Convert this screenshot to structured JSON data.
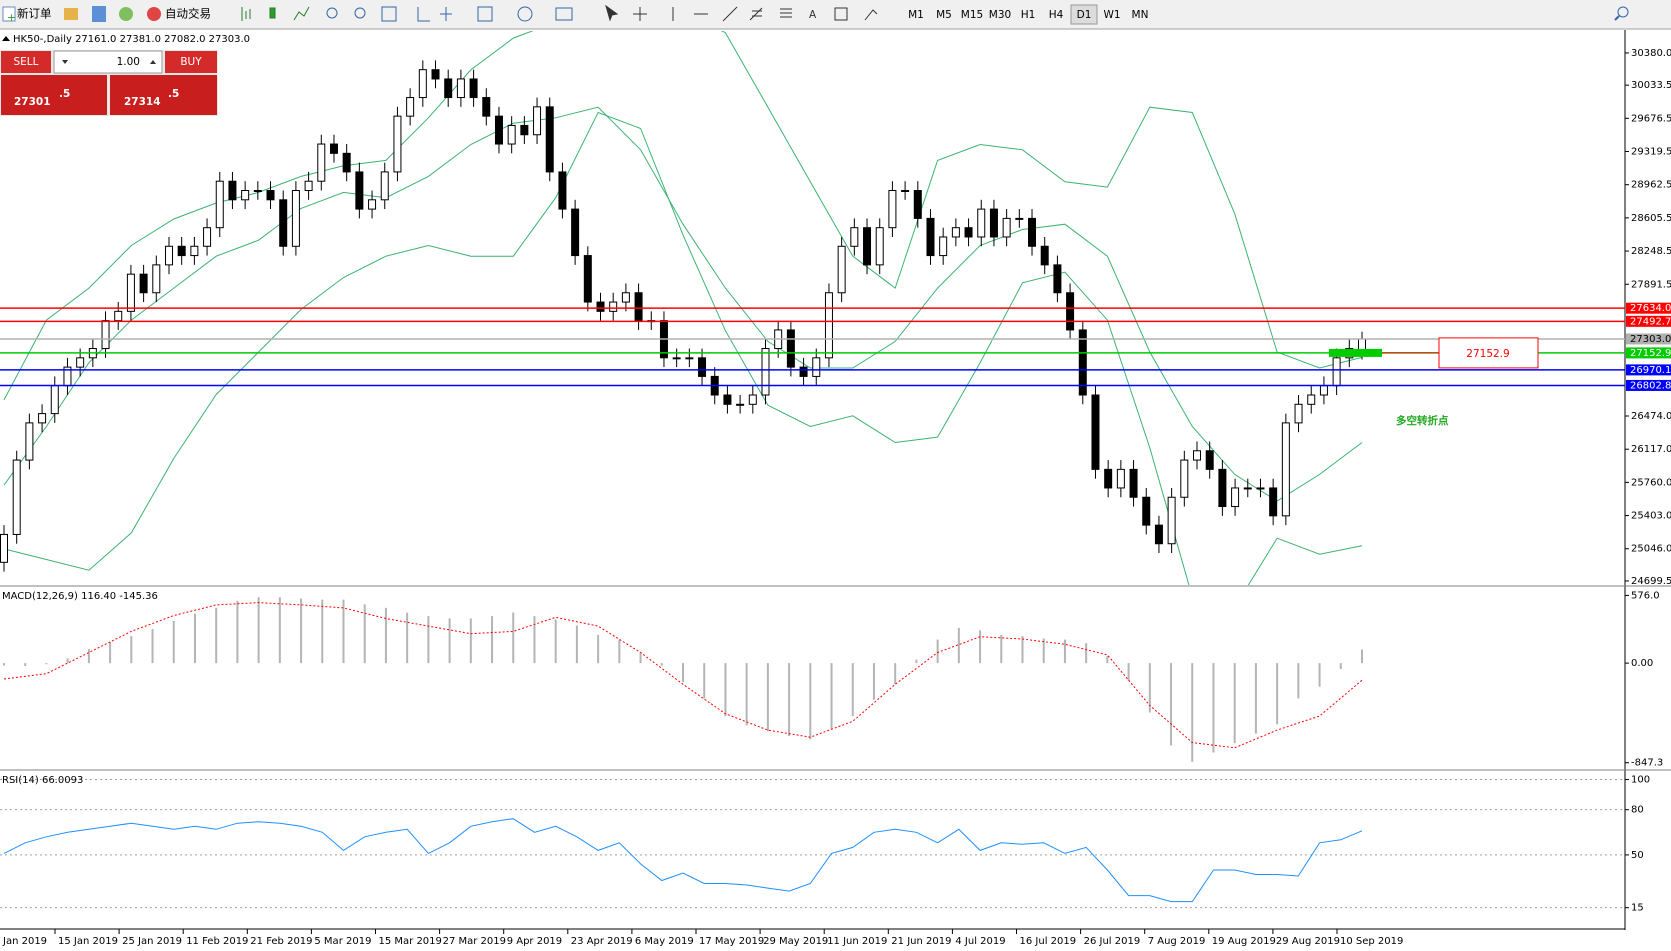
{
  "toolbar": {
    "new_order": "新订单",
    "auto_trading": "自动交易",
    "timeframes": [
      "M1",
      "M5",
      "M15",
      "M30",
      "H1",
      "H4",
      "D1",
      "W1",
      "MN"
    ]
  },
  "trade_panel": {
    "sell": "SELL",
    "lot": "1.00",
    "buy": "BUY",
    "bid_main": "27301",
    "bid_frac": ".5",
    "ask_main": "27314",
    "ask_frac": ".5"
  },
  "chart_data": [
    {
      "type": "candlestick",
      "title": "HK50-,Daily 27161.0 27381.0 27082.0 27303.0",
      "up_color": "#ffffff",
      "down_color": "#000000",
      "ohlc": [
        [
          24900,
          25300,
          24800,
          25200
        ],
        [
          25200,
          26100,
          25100,
          26000
        ],
        [
          26000,
          26500,
          25900,
          26400
        ],
        [
          26400,
          26600,
          26300,
          26500
        ],
        [
          26500,
          26900,
          26400,
          26800
        ],
        [
          26800,
          27100,
          26700,
          27000
        ],
        [
          27000,
          27200,
          26900,
          27100
        ],
        [
          27100,
          27300,
          27000,
          27200
        ],
        [
          27200,
          27600,
          27100,
          27500
        ],
        [
          27500,
          27700,
          27400,
          27600
        ],
        [
          27600,
          28100,
          27500,
          28000
        ],
        [
          28000,
          28100,
          27700,
          27800
        ],
        [
          27800,
          28200,
          27700,
          28100
        ],
        [
          28100,
          28400,
          28000,
          28300
        ],
        [
          28300,
          28400,
          28100,
          28200
        ],
        [
          28200,
          28400,
          28100,
          28300
        ],
        [
          28300,
          28600,
          28200,
          28500
        ],
        [
          28500,
          29100,
          28400,
          29000
        ],
        [
          29000,
          29100,
          28700,
          28800
        ],
        [
          28800,
          29000,
          28700,
          28900
        ],
        [
          28900,
          29000,
          28800,
          28900
        ],
        [
          28900,
          29000,
          28700,
          28800
        ],
        [
          28800,
          28900,
          28200,
          28300
        ],
        [
          28300,
          29000,
          28200,
          28900
        ],
        [
          28900,
          29100,
          28800,
          29000
        ],
        [
          29000,
          29500,
          28900,
          29400
        ],
        [
          29400,
          29500,
          29200,
          29300
        ],
        [
          29300,
          29400,
          29000,
          29100
        ],
        [
          29100,
          29200,
          28600,
          28700
        ],
        [
          28700,
          28900,
          28600,
          28800
        ],
        [
          28800,
          29200,
          28700,
          29100
        ],
        [
          29100,
          29800,
          29000,
          29700
        ],
        [
          29700,
          30000,
          29600,
          29900
        ],
        [
          29900,
          30300,
          29800,
          30200
        ],
        [
          30200,
          30300,
          30000,
          30100
        ],
        [
          30100,
          30200,
          29800,
          29900
        ],
        [
          29900,
          30200,
          29800,
          30100
        ],
        [
          30100,
          30200,
          29800,
          29900
        ],
        [
          29900,
          30000,
          29600,
          29700
        ],
        [
          29700,
          29800,
          29300,
          29400
        ],
        [
          29400,
          29700,
          29300,
          29600
        ],
        [
          29600,
          29700,
          29400,
          29500
        ],
        [
          29500,
          29900,
          29400,
          29800
        ],
        [
          29800,
          29900,
          29000,
          29100
        ],
        [
          29100,
          29200,
          28600,
          28700
        ],
        [
          28700,
          28800,
          28100,
          28200
        ],
        [
          28200,
          28300,
          27600,
          27700
        ],
        [
          27700,
          27800,
          27500,
          27600
        ],
        [
          27600,
          27800,
          27500,
          27700
        ],
        [
          27700,
          27900,
          27600,
          27800
        ],
        [
          27800,
          27900,
          27400,
          27500
        ],
        [
          27500,
          27600,
          27400,
          27500
        ],
        [
          27500,
          27600,
          27000,
          27100
        ],
        [
          27100,
          27200,
          27000,
          27100
        ],
        [
          27100,
          27200,
          27000,
          27100
        ],
        [
          27100,
          27200,
          26800,
          26900
        ],
        [
          26900,
          27000,
          26600,
          26700
        ],
        [
          26700,
          26800,
          26500,
          26600
        ],
        [
          26600,
          26700,
          26500,
          26600
        ],
        [
          26600,
          26800,
          26500,
          26700
        ],
        [
          26700,
          27300,
          26600,
          27200
        ],
        [
          27200,
          27500,
          27100,
          27400
        ],
        [
          27400,
          27500,
          26900,
          27000
        ],
        [
          27000,
          27100,
          26800,
          26900
        ],
        [
          26900,
          27200,
          26800,
          27100
        ],
        [
          27100,
          27900,
          27000,
          27800
        ],
        [
          27800,
          28400,
          27700,
          28300
        ],
        [
          28300,
          28600,
          28200,
          28500
        ],
        [
          28500,
          28600,
          28000,
          28100
        ],
        [
          28100,
          28600,
          28000,
          28500
        ],
        [
          28500,
          29000,
          28400,
          28900
        ],
        [
          28900,
          29000,
          28800,
          28900
        ],
        [
          28900,
          29000,
          28500,
          28600
        ],
        [
          28600,
          28700,
          28100,
          28200
        ],
        [
          28200,
          28500,
          28100,
          28400
        ],
        [
          28400,
          28600,
          28300,
          28500
        ],
        [
          28500,
          28600,
          28300,
          28400
        ],
        [
          28400,
          28800,
          28300,
          28700
        ],
        [
          28700,
          28800,
          28300,
          28400
        ],
        [
          28400,
          28700,
          28300,
          28600
        ],
        [
          28600,
          28700,
          28500,
          28600
        ],
        [
          28600,
          28700,
          28200,
          28300
        ],
        [
          28300,
          28400,
          28000,
          28100
        ],
        [
          28100,
          28200,
          27700,
          27800
        ],
        [
          27800,
          27900,
          27300,
          27400
        ],
        [
          27400,
          27500,
          26600,
          26700
        ],
        [
          26700,
          26800,
          25800,
          25900
        ],
        [
          25900,
          26000,
          25600,
          25700
        ],
        [
          25700,
          26000,
          25600,
          25900
        ],
        [
          25900,
          26000,
          25500,
          25600
        ],
        [
          25600,
          25700,
          25200,
          25300
        ],
        [
          25300,
          25400,
          25000,
          25100
        ],
        [
          25100,
          25700,
          25000,
          25600
        ],
        [
          25600,
          26100,
          25500,
          26000
        ],
        [
          26000,
          26200,
          25900,
          26100
        ],
        [
          26100,
          26200,
          25800,
          25900
        ],
        [
          25900,
          26000,
          25400,
          25500
        ],
        [
          25500,
          25800,
          25400,
          25700
        ],
        [
          25700,
          25800,
          25600,
          25700
        ],
        [
          25700,
          25800,
          25600,
          25700
        ],
        [
          25700,
          25800,
          25300,
          25400
        ],
        [
          25400,
          26500,
          25300,
          26400
        ],
        [
          26400,
          26700,
          26300,
          26600
        ],
        [
          26600,
          26800,
          26500,
          26700
        ],
        [
          26700,
          26900,
          26600,
          26800
        ],
        [
          26800,
          27200,
          26700,
          27100
        ],
        [
          27100,
          27300,
          27000,
          27200
        ],
        [
          27161,
          27381,
          27082,
          27303
        ]
      ],
      "bollinger": {
        "color": "#3cb371",
        "upper": [
          26647,
          27506,
          27850,
          28308,
          28594,
          28766,
          28880,
          29052,
          29166,
          29224,
          29682,
          30197,
          30540,
          30712,
          30769,
          30826,
          30826,
          30598,
          29796,
          28994,
          28193,
          27850,
          29224,
          29395,
          29338,
          28994,
          28937,
          29796,
          29739,
          28651,
          27163,
          26991,
          27105
        ],
        "middle": [
          25731,
          26361,
          27048,
          27506,
          27850,
          28193,
          28365,
          28708,
          28880,
          28823,
          29052,
          29395,
          29624,
          29682,
          29796,
          29338,
          28537,
          27850,
          27277,
          26991,
          26991,
          27277,
          27850,
          28308,
          28480,
          28537,
          28193,
          27163,
          26361,
          25846,
          25560,
          25846,
          26189
        ],
        "lower": [
          25044,
          24930,
          24815,
          25216,
          26018,
          26705,
          27163,
          27621,
          27964,
          28193,
          28308,
          28193,
          28193,
          28823,
          29739,
          29567,
          28422,
          27392,
          26590,
          26361,
          26476,
          26189,
          26247,
          27048,
          27907,
          28021,
          27506,
          26132,
          24529,
          24415,
          25159,
          24987,
          25079
        ]
      },
      "levels": [
        {
          "value": 27634.0,
          "label": "27634.0",
          "color": "#ff0000",
          "label_color": "#ffffff"
        },
        {
          "value": 27492.7,
          "label": "27492.7",
          "color": "#ff0000",
          "label_color": "#ffffff"
        },
        {
          "value": 27303.0,
          "label": "27303.0",
          "color": "#b0b0b0",
          "label_color": "#000000"
        },
        {
          "value": 27152.9,
          "label": "27152.9",
          "color": "#00cc00",
          "label_color": "#ffffff"
        },
        {
          "value": 26970.1,
          "label": "26970.1",
          "color": "#0000ff",
          "label_color": "#ffffff"
        },
        {
          "value": 26802.8,
          "label": "26802.8",
          "color": "#0000ff",
          "label_color": "#ffffff"
        }
      ],
      "annotation": {
        "text": "多空转折点",
        "color": "#22aa22"
      },
      "ylim": [
        24656,
        30616
      ],
      "yticks": [
        {
          "value": 30380,
          "label": "30380.0"
        },
        {
          "value": 30033.5,
          "label": "30033.5"
        },
        {
          "value": 29676.5,
          "label": "29676.5"
        },
        {
          "value": 29319.5,
          "label": "29319.5"
        },
        {
          "value": 28962.5,
          "label": "28962.5"
        },
        {
          "value": 28605.5,
          "label": "28605.5"
        },
        {
          "value": 28248.5,
          "label": "28248.5"
        },
        {
          "value": 27891.5,
          "label": "27891.5"
        },
        {
          "value": 26474,
          "label": "26474.0"
        },
        {
          "value": 26117,
          "label": "26117.0"
        },
        {
          "value": 25760,
          "label": "25760.0"
        },
        {
          "value": 25403,
          "label": "25403.0"
        },
        {
          "value": 25046,
          "label": "25046.0"
        },
        {
          "value": 24699.5,
          "label": "24699.5"
        }
      ],
      "date_labels": [
        "Jan 2019",
        "15 Jan 2019",
        "25 Jan 2019",
        "11 Feb 2019",
        "21 Feb 2019",
        "5 Mar 2019",
        "15 Mar 2019",
        "27 Mar 2019",
        "9 Apr 2019",
        "23 Apr 2019",
        "6 May 2019",
        "17 May 2019",
        "29 May 2019",
        "11 Jun 2019",
        "21 Jun 2019",
        "4 Jul 2019",
        "16 Jul 2019",
        "26 Jul 2019",
        "7 Aug 2019",
        "19 Aug 2019",
        "29 Aug 2019",
        "10 Sep 2019"
      ]
    },
    {
      "type": "macd",
      "title": "MACD(12,26,9) 116.40 -145.36",
      "histogram": {
        "color": "#b4b4b4",
        "values": [
          -20,
          -25,
          -10,
          40,
          120,
          180,
          230,
          290,
          360,
          420,
          470,
          530,
          560,
          560,
          550,
          540,
          540,
          500,
          470,
          430,
          400,
          380,
          380,
          400,
          430,
          400,
          370,
          320,
          240,
          200,
          90,
          -20,
          -160,
          -300,
          -450,
          -530,
          -580,
          -620,
          -650,
          -560,
          -450,
          -310,
          -180,
          30,
          200,
          300,
          280,
          240,
          230,
          210,
          200,
          170,
          60,
          -150,
          -420,
          -700,
          -840,
          -760,
          -680,
          -600,
          -520,
          -300,
          -200,
          -50,
          116.4
        ]
      },
      "signal": {
        "color": "#ff0000",
        "values": [
          -135,
          -90,
          90,
          270,
          405,
          495,
          515,
          495,
          470,
          380,
          315,
          250,
          270,
          390,
          315,
          90,
          -180,
          -430,
          -570,
          -630,
          -495,
          -180,
          90,
          225,
          205,
          160,
          70,
          -360,
          -675,
          -720,
          -570,
          -450,
          -145.36
        ]
      },
      "ylim": [
        -892,
        639
      ],
      "yticks": [
        {
          "value": 576,
          "label": "576.0"
        },
        {
          "value": 0,
          "label": "0.00"
        },
        {
          "value": -847.3,
          "label": "-847.3"
        }
      ]
    },
    {
      "type": "line",
      "title": "RSI(14) 66.0093",
      "series": [
        {
          "color": "#1e90ff",
          "values": [
            51,
            58,
            62,
            65,
            67,
            69,
            71,
            69,
            67,
            69,
            67,
            71,
            72,
            71,
            69,
            65,
            53,
            62,
            65,
            67,
            51,
            58,
            69,
            72,
            74,
            65,
            69,
            62,
            53,
            58,
            44,
            33,
            38,
            31,
            31,
            30,
            28,
            26,
            31,
            51,
            55,
            65,
            67,
            65,
            58,
            67,
            53,
            58,
            57,
            58,
            51,
            55,
            40,
            23,
            23,
            19,
            19,
            40,
            40,
            37,
            37,
            36,
            58,
            60,
            66.0093
          ]
        }
      ],
      "ylim": [
        1.5,
        105
      ],
      "yticks": [
        100,
        80,
        50,
        15
      ],
      "grid": true
    }
  ]
}
